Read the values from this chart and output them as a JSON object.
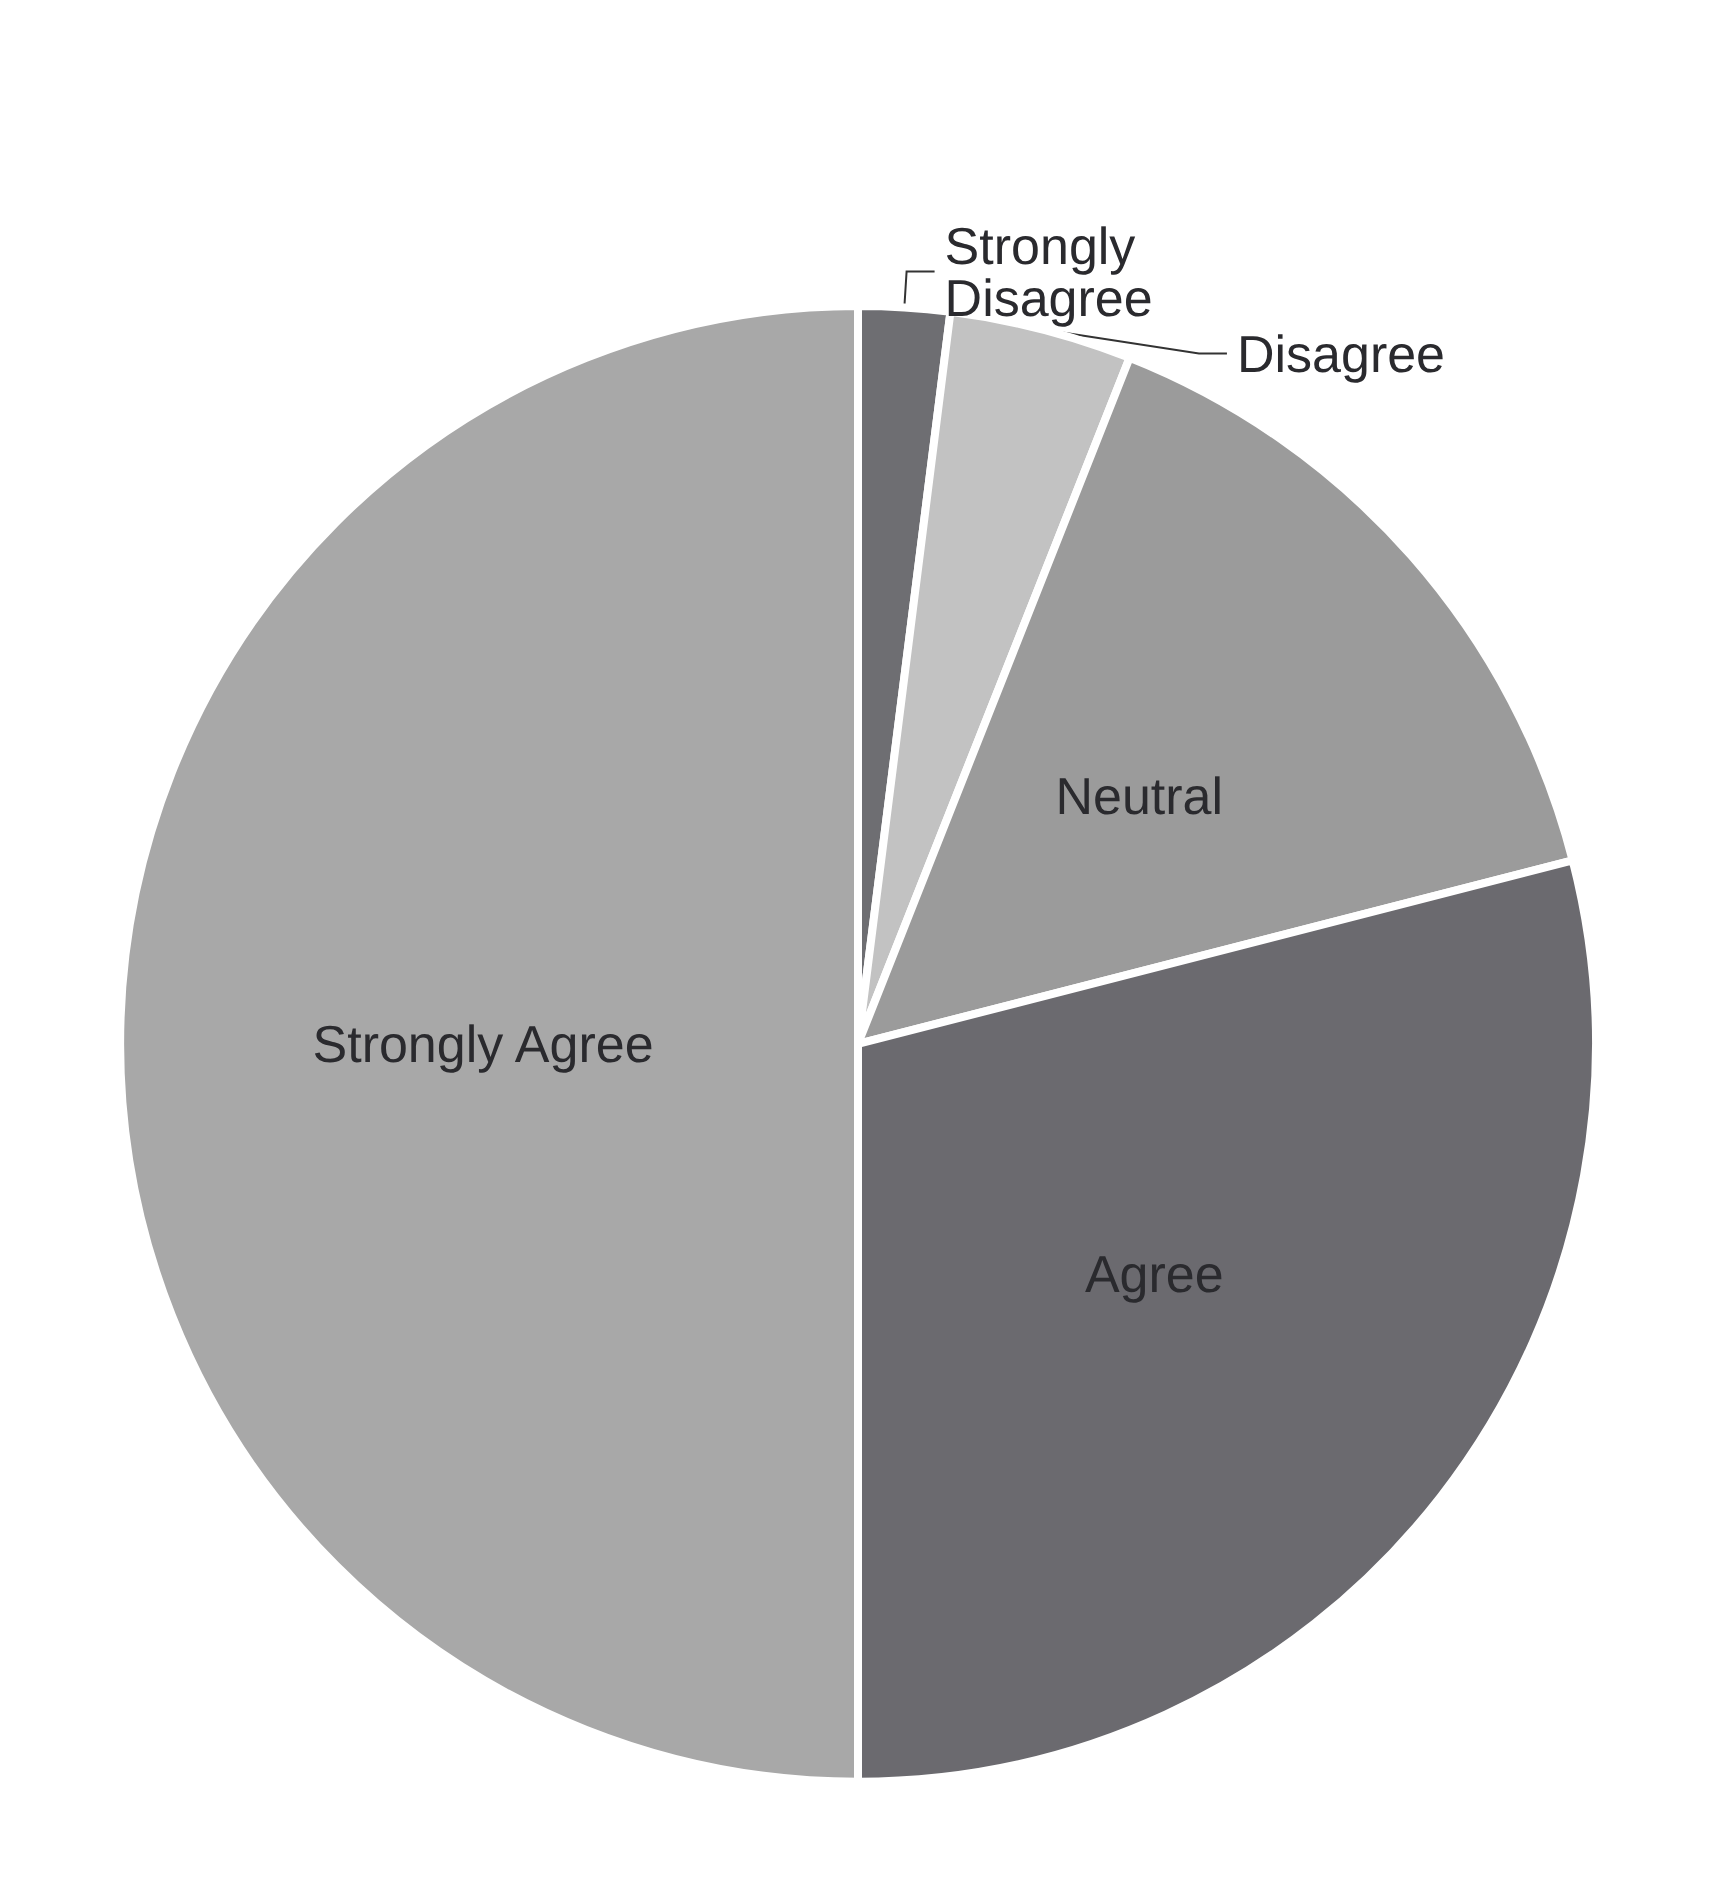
{
  "chart_data": {
    "type": "pie",
    "categories": [
      "Strongly Disagree",
      "Disagree",
      "Neutral",
      "Agree",
      "Strongly Agree"
    ],
    "values": [
      2,
      4,
      15,
      29,
      50
    ],
    "colors": [
      "#6e6e72",
      "#c2c2c2",
      "#9b9b9b",
      "#6b6a6f",
      "#a8a8a8"
    ],
    "legend": false
  }
}
